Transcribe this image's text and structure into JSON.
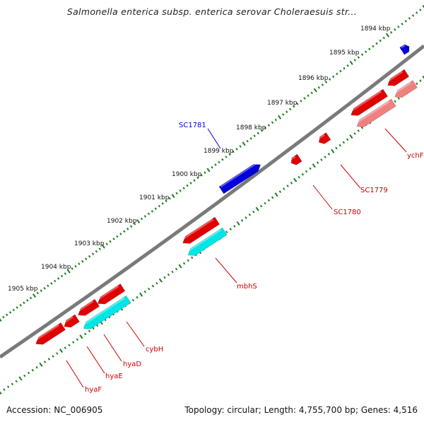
{
  "title": "Salmonella enterica subsp. enterica serovar Choleraesuis str...",
  "footer": {
    "accession": "Accession: NC_006905",
    "summary": "Topology: circular; Length: 4,755,700 bp; Genes: 4,516"
  },
  "colors": {
    "ruler_dots": "#1e7d1e",
    "backbone": "#808080",
    "gene_red": "#e00000",
    "gene_pink": "#f08080",
    "gene_blue": "#0000dd",
    "gene_cyan": "#00e5e5",
    "label_red": "#cc0000",
    "label_blue": "#0000cc"
  },
  "scale_ticks": [
    {
      "label": "1894 kbp",
      "kbp": 1894
    },
    {
      "label": "1895 kbp",
      "kbp": 1895
    },
    {
      "label": "1896 kbp",
      "kbp": 1896
    },
    {
      "label": "1897 kbp",
      "kbp": 1897
    },
    {
      "label": "1898 kbp",
      "kbp": 1898
    },
    {
      "label": "1899 kbp",
      "kbp": 1899
    },
    {
      "label": "1900 kbp",
      "kbp": 1900
    },
    {
      "label": "1901 kbp",
      "kbp": 1901
    },
    {
      "label": "1902 kbp",
      "kbp": 1902
    },
    {
      "label": "1903 kbp",
      "kbp": 1903
    },
    {
      "label": "1904 kbp",
      "kbp": 1904
    },
    {
      "label": "1905 kbp",
      "kbp": 1905
    }
  ],
  "genes": [
    {
      "name": "SC1781",
      "strand": "forward",
      "color": "blue"
    },
    {
      "name": "ychF",
      "strand": "reverse",
      "color": "red"
    },
    {
      "name": "SC1779",
      "strand": "reverse",
      "color": "red"
    },
    {
      "name": "SC1780",
      "strand": "reverse",
      "color": "red"
    },
    {
      "name": "mbhS",
      "strand": "reverse",
      "color": "red"
    },
    {
      "name": "cybH",
      "strand": "reverse",
      "color": "red"
    },
    {
      "name": "hyaD",
      "strand": "reverse",
      "color": "red"
    },
    {
      "name": "hyaE",
      "strand": "reverse",
      "color": "red"
    },
    {
      "name": "hyaF",
      "strand": "reverse",
      "color": "red"
    }
  ]
}
